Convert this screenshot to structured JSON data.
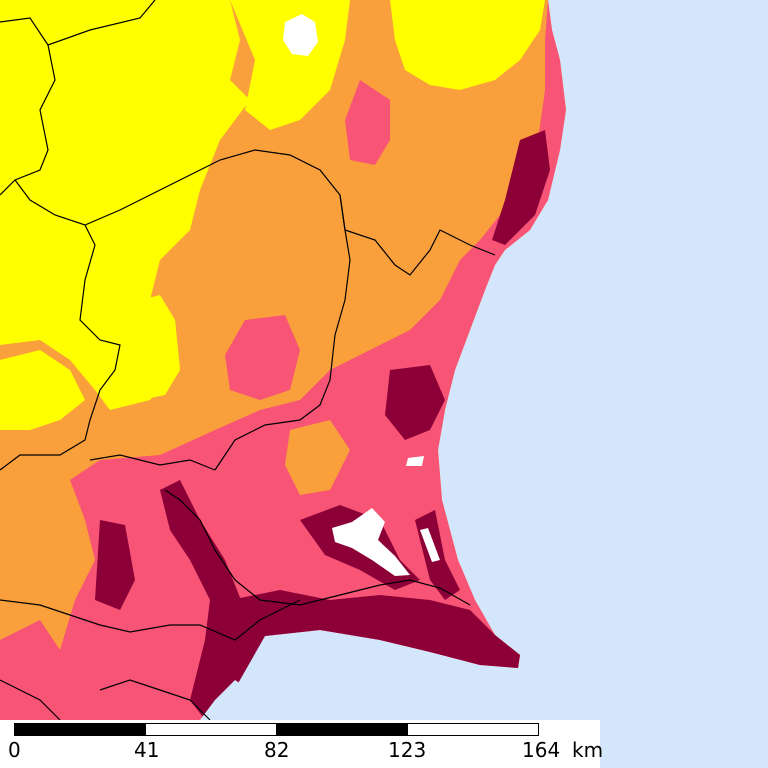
{
  "map": {
    "colors": {
      "sea": "#d4e6fb",
      "class_1": "#ffff00",
      "class_2": "#f9a03c",
      "class_3": "#f75476",
      "class_4": "#8c0037",
      "water": "#ffffff",
      "boundary": "#000000"
    }
  },
  "scale_bar": {
    "ticks": [
      "0",
      "41",
      "82",
      "123",
      "164"
    ],
    "unit": "km"
  }
}
